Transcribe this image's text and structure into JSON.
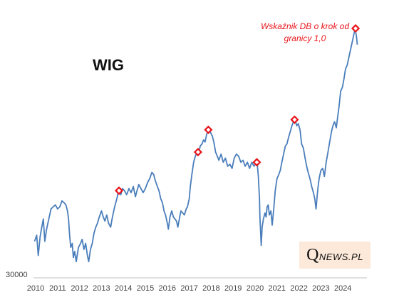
{
  "chart_data": {
    "type": "line",
    "title": "WIG",
    "y_axis_label_min": "30000",
    "ymin": 30000,
    "ymax": 95000,
    "xlim": [
      2010,
      2025
    ],
    "x_ticks": [
      "2010",
      "2011",
      "2012",
      "2013",
      "2014",
      "2015",
      "2016",
      "2017",
      "2018",
      "2019",
      "2020",
      "2021",
      "2022",
      "2023",
      "2024"
    ],
    "annotation": [
      "Wskaźnik DB o krok od",
      "granicy 1,0"
    ],
    "colors": {
      "line": "#4a7ebb",
      "marker": "#e8141a",
      "annotation": "#e8141a"
    },
    "series": [
      {
        "values": [
          [
            2009.95,
            39000
          ],
          [
            2010.05,
            40500
          ],
          [
            2010.12,
            35500
          ],
          [
            2010.2,
            40000
          ],
          [
            2010.28,
            42500
          ],
          [
            2010.35,
            44500
          ],
          [
            2010.42,
            39000
          ],
          [
            2010.5,
            42000
          ],
          [
            2010.6,
            44500
          ],
          [
            2010.7,
            47000
          ],
          [
            2010.8,
            47500
          ],
          [
            2010.9,
            48000
          ],
          [
            2011.0,
            47000
          ],
          [
            2011.1,
            47500
          ],
          [
            2011.2,
            49000
          ],
          [
            2011.3,
            48500
          ],
          [
            2011.38,
            48000
          ],
          [
            2011.45,
            46500
          ],
          [
            2011.5,
            44500
          ],
          [
            2011.55,
            40500
          ],
          [
            2011.6,
            37500
          ],
          [
            2011.67,
            38500
          ],
          [
            2011.72,
            35000
          ],
          [
            2011.78,
            36500
          ],
          [
            2011.85,
            34000
          ],
          [
            2011.95,
            37500
          ],
          [
            2012.05,
            38500
          ],
          [
            2012.12,
            39500
          ],
          [
            2012.2,
            37000
          ],
          [
            2012.28,
            38500
          ],
          [
            2012.36,
            35500
          ],
          [
            2012.42,
            34000
          ],
          [
            2012.5,
            37000
          ],
          [
            2012.58,
            38500
          ],
          [
            2012.66,
            41000
          ],
          [
            2012.74,
            42500
          ],
          [
            2012.82,
            43500
          ],
          [
            2012.9,
            45000
          ],
          [
            2013.0,
            46500
          ],
          [
            2013.08,
            45000
          ],
          [
            2013.16,
            44000
          ],
          [
            2013.24,
            45500
          ],
          [
            2013.32,
            43500
          ],
          [
            2013.42,
            42500
          ],
          [
            2013.5,
            45000
          ],
          [
            2013.6,
            47500
          ],
          [
            2013.7,
            49500
          ],
          [
            2013.78,
            51500
          ],
          [
            2013.88,
            50500
          ],
          [
            2013.96,
            52000
          ],
          [
            2014.05,
            51500
          ],
          [
            2014.15,
            50500
          ],
          [
            2014.25,
            52000
          ],
          [
            2014.35,
            51000
          ],
          [
            2014.45,
            52500
          ],
          [
            2014.55,
            50000
          ],
          [
            2014.62,
            51500
          ],
          [
            2014.7,
            53000
          ],
          [
            2014.8,
            52000
          ],
          [
            2014.9,
            51000
          ],
          [
            2015.0,
            52000
          ],
          [
            2015.1,
            53500
          ],
          [
            2015.2,
            54500
          ],
          [
            2015.3,
            56000
          ],
          [
            2015.38,
            55500
          ],
          [
            2015.45,
            54000
          ],
          [
            2015.55,
            52500
          ],
          [
            2015.62,
            51500
          ],
          [
            2015.7,
            49500
          ],
          [
            2015.78,
            48500
          ],
          [
            2015.85,
            46500
          ],
          [
            2015.92,
            45500
          ],
          [
            2016.0,
            43500
          ],
          [
            2016.05,
            42000
          ],
          [
            2016.12,
            45000
          ],
          [
            2016.2,
            46500
          ],
          [
            2016.28,
            45000
          ],
          [
            2016.35,
            44500
          ],
          [
            2016.42,
            44000
          ],
          [
            2016.48,
            42500
          ],
          [
            2016.55,
            44500
          ],
          [
            2016.62,
            46500
          ],
          [
            2016.7,
            46000
          ],
          [
            2016.78,
            45500
          ],
          [
            2016.86,
            47000
          ],
          [
            2016.92,
            47500
          ],
          [
            2017.0,
            49500
          ],
          [
            2017.05,
            52500
          ],
          [
            2017.12,
            55500
          ],
          [
            2017.2,
            58500
          ],
          [
            2017.28,
            60000
          ],
          [
            2017.35,
            61000
          ],
          [
            2017.42,
            60500
          ],
          [
            2017.5,
            62500
          ],
          [
            2017.58,
            63000
          ],
          [
            2017.65,
            64000
          ],
          [
            2017.72,
            63500
          ],
          [
            2017.8,
            65500
          ],
          [
            2017.88,
            66500
          ],
          [
            2017.95,
            66000
          ],
          [
            2018.05,
            65000
          ],
          [
            2018.12,
            63500
          ],
          [
            2018.2,
            61000
          ],
          [
            2018.28,
            60000
          ],
          [
            2018.35,
            59000
          ],
          [
            2018.45,
            60500
          ],
          [
            2018.55,
            58500
          ],
          [
            2018.65,
            59500
          ],
          [
            2018.75,
            57500
          ],
          [
            2018.85,
            58000
          ],
          [
            2018.95,
            57000
          ],
          [
            2019.05,
            59500
          ],
          [
            2019.15,
            60500
          ],
          [
            2019.25,
            60000
          ],
          [
            2019.35,
            58500
          ],
          [
            2019.45,
            59000
          ],
          [
            2019.55,
            57500
          ],
          [
            2019.65,
            58500
          ],
          [
            2019.75,
            57000
          ],
          [
            2019.85,
            58500
          ],
          [
            2019.95,
            57500
          ],
          [
            2020.05,
            58500
          ],
          [
            2020.1,
            58000
          ],
          [
            2020.15,
            55000
          ],
          [
            2020.2,
            49500
          ],
          [
            2020.22,
            45000
          ],
          [
            2020.25,
            41500
          ],
          [
            2020.28,
            38000
          ],
          [
            2020.32,
            42500
          ],
          [
            2020.38,
            44500
          ],
          [
            2020.45,
            46000
          ],
          [
            2020.5,
            45000
          ],
          [
            2020.55,
            47500
          ],
          [
            2020.6,
            48000
          ],
          [
            2020.65,
            45500
          ],
          [
            2020.72,
            46500
          ],
          [
            2020.78,
            43000
          ],
          [
            2020.85,
            47000
          ],
          [
            2020.92,
            51500
          ],
          [
            2021.0,
            54500
          ],
          [
            2021.08,
            55500
          ],
          [
            2021.15,
            56500
          ],
          [
            2021.22,
            58500
          ],
          [
            2021.3,
            60500
          ],
          [
            2021.38,
            62500
          ],
          [
            2021.45,
            63000
          ],
          [
            2021.52,
            64500
          ],
          [
            2021.6,
            66000
          ],
          [
            2021.68,
            67500
          ],
          [
            2021.75,
            68500
          ],
          [
            2021.82,
            69000
          ],
          [
            2021.9,
            67500
          ],
          [
            2021.97,
            68000
          ],
          [
            2022.05,
            66500
          ],
          [
            2022.12,
            63000
          ],
          [
            2022.2,
            62000
          ],
          [
            2022.28,
            59500
          ],
          [
            2022.35,
            57500
          ],
          [
            2022.42,
            56000
          ],
          [
            2022.5,
            54500
          ],
          [
            2022.58,
            52500
          ],
          [
            2022.66,
            51000
          ],
          [
            2022.72,
            49500
          ],
          [
            2022.78,
            47000
          ],
          [
            2022.85,
            51500
          ],
          [
            2022.92,
            54500
          ],
          [
            2023.0,
            56500
          ],
          [
            2023.08,
            57000
          ],
          [
            2023.16,
            55000
          ],
          [
            2023.24,
            58500
          ],
          [
            2023.32,
            61000
          ],
          [
            2023.4,
            63500
          ],
          [
            2023.48,
            66000
          ],
          [
            2023.55,
            67500
          ],
          [
            2023.62,
            68500
          ],
          [
            2023.7,
            67000
          ],
          [
            2023.76,
            69500
          ],
          [
            2023.82,
            72000
          ],
          [
            2023.9,
            76000
          ],
          [
            2023.98,
            77000
          ],
          [
            2024.05,
            79000
          ],
          [
            2024.12,
            81500
          ],
          [
            2024.2,
            82500
          ],
          [
            2024.28,
            84500
          ],
          [
            2024.36,
            86500
          ],
          [
            2024.44,
            88500
          ],
          [
            2024.5,
            90000
          ],
          [
            2024.56,
            91500
          ],
          [
            2024.62,
            89500
          ],
          [
            2024.66,
            87500
          ]
        ]
      }
    ],
    "markers": [
      [
        2013.8,
        51500
      ],
      [
        2017.4,
        61000
      ],
      [
        2017.87,
        66500
      ],
      [
        2020.08,
        58500
      ],
      [
        2021.8,
        69000
      ],
      [
        2024.58,
        91500
      ]
    ]
  },
  "logo": {
    "big": "Q",
    "rest": "NEWS.PL"
  }
}
